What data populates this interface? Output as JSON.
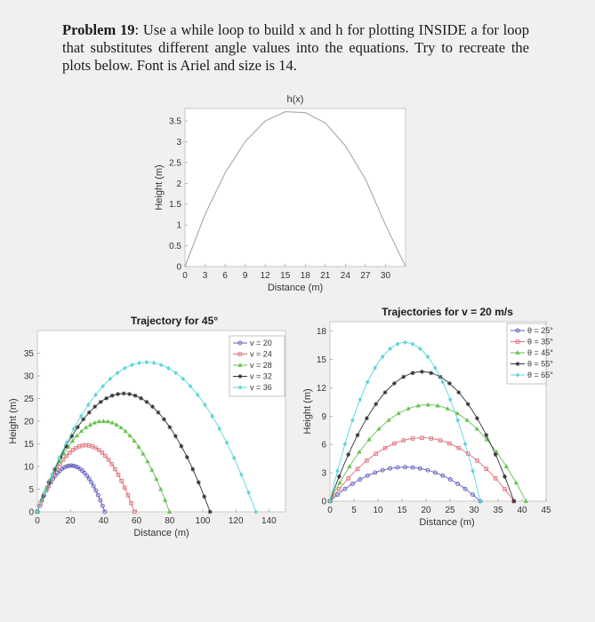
{
  "problem": {
    "label": "Problem 19",
    "text": ": Use a while loop to build x and h for plotting INSIDE a for loop that substitutes different angle values into the equations. Try to recreate the plots below. Font is Ariel and size is 14."
  },
  "chart_data": [
    {
      "type": "line",
      "title": "h(x)",
      "xlabel": "Distance (m)",
      "ylabel": "Height (m)",
      "xlim": [
        0,
        33
      ],
      "ylim": [
        0,
        3.8
      ],
      "xticks": [
        0,
        3,
        6,
        9,
        12,
        15,
        18,
        21,
        24,
        27,
        30
      ],
      "yticks": [
        0,
        0.5,
        1,
        1.5,
        2,
        2.5,
        3,
        3.5
      ],
      "ytick_labels": [
        "0",
        "0.5",
        "1",
        "1.5",
        "2",
        "2.5",
        "3",
        "3.5"
      ],
      "series": [
        {
          "color": "#a8a8a8",
          "x": [
            0,
            3,
            6,
            9,
            12,
            15,
            18,
            21,
            24,
            27,
            30,
            33
          ],
          "y": [
            0,
            1.25,
            2.25,
            3.0,
            3.5,
            3.72,
            3.7,
            3.45,
            2.9,
            2.1,
            1.0,
            0
          ]
        }
      ]
    },
    {
      "type": "line",
      "title": "Trajectory for 45°",
      "xlabel": "Distance (m)",
      "ylabel": "Height (m)",
      "xlim": [
        0,
        150
      ],
      "ylim": [
        0,
        40
      ],
      "xticks": [
        0,
        20,
        40,
        60,
        80,
        100,
        120,
        140
      ],
      "yticks": [
        0,
        5,
        10,
        15,
        20,
        25,
        30,
        35
      ],
      "ytick_labels": [
        "0",
        "5",
        "10",
        "15",
        "20",
        "25",
        "30",
        "35"
      ],
      "legend": "top-right",
      "series": [
        {
          "name": "v = 20",
          "color": "#5e5cb8",
          "marker": "circle",
          "range": 40.8,
          "peak": 10.2
        },
        {
          "name": "v = 24",
          "color": "#e0707a",
          "marker": "square",
          "range": 58.7,
          "peak": 14.7
        },
        {
          "name": "v = 28",
          "color": "#64c24e",
          "marker": "triangle",
          "range": 79.9,
          "peak": 20.0
        },
        {
          "name": "v = 32",
          "color": "#333333",
          "marker": "star",
          "range": 104.4,
          "peak": 26.1
        },
        {
          "name": "v = 36",
          "color": "#5bd6dc",
          "marker": "diamond",
          "range": 132.1,
          "peak": 33.0
        }
      ]
    },
    {
      "type": "line",
      "title": "Trajectories for v = 20 m/s",
      "xlabel": "Distance (m)",
      "ylabel": "Height (m)",
      "xlim": [
        0,
        45
      ],
      "ylim": [
        0,
        19
      ],
      "xticks": [
        0,
        5,
        10,
        15,
        20,
        25,
        30,
        35,
        40,
        45
      ],
      "yticks": [
        0,
        3,
        6,
        9,
        12,
        15,
        18
      ],
      "ytick_labels": [
        "0",
        "3",
        "6",
        "9",
        "12",
        "15",
        "18"
      ],
      "legend": "top-right",
      "series": [
        {
          "name": "θ = 25°",
          "color": "#5e5cb8",
          "marker": "circle",
          "range": 31.3,
          "peak": 3.6
        },
        {
          "name": "θ = 35°",
          "color": "#e0707a",
          "marker": "square",
          "range": 38.3,
          "peak": 6.7
        },
        {
          "name": "θ = 45°",
          "color": "#64c24e",
          "marker": "triangle",
          "range": 40.8,
          "peak": 10.2
        },
        {
          "name": "θ = 55°",
          "color": "#333333",
          "marker": "star",
          "range": 38.3,
          "peak": 13.7
        },
        {
          "name": "θ = 65°",
          "color": "#5bd6dc",
          "marker": "diamond",
          "range": 31.3,
          "peak": 16.8
        }
      ]
    }
  ]
}
